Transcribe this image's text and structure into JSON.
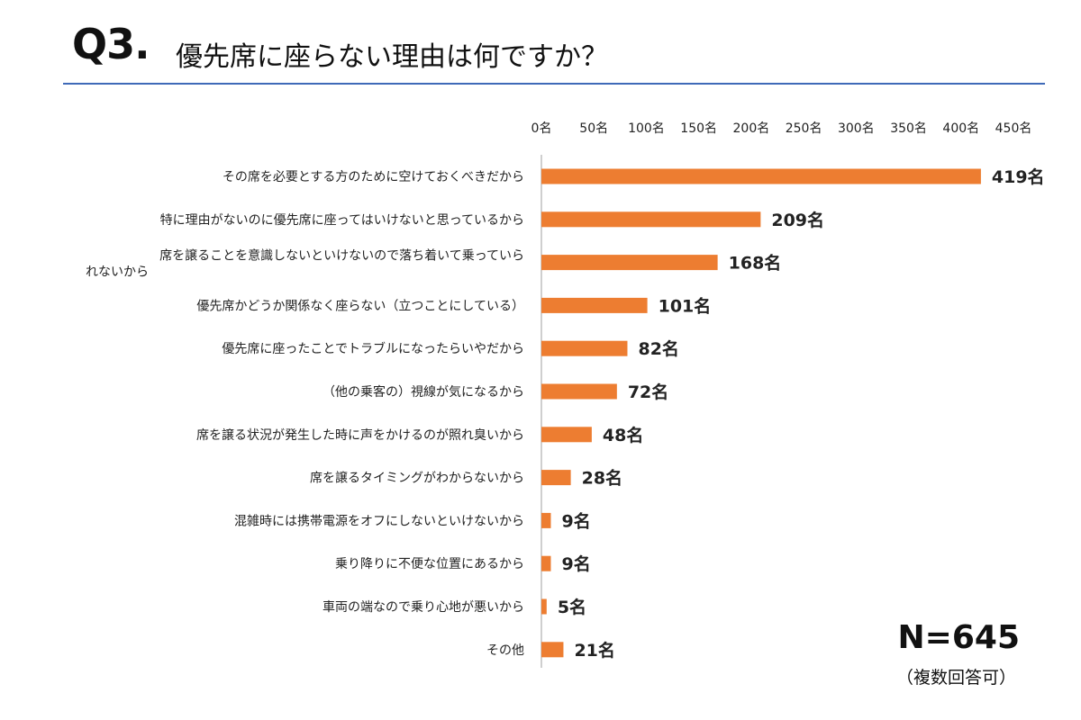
{
  "title": {
    "prefix": "Q3.",
    "text": "優先席に座らない理由は何ですか？"
  },
  "sample": {
    "n": "N=645",
    "note": "（複数回答可）"
  },
  "colors": {
    "bar": "#ed7d31",
    "rule": "#3f6ab8",
    "axis": "#bfbfbf"
  },
  "chart_data": {
    "type": "bar",
    "orientation": "horizontal",
    "unit": "名",
    "xlim": [
      0,
      450
    ],
    "ticks": [
      "0名",
      "50名",
      "100名",
      "150名",
      "200名",
      "250名",
      "300名",
      "350名",
      "400名",
      "450名"
    ],
    "tick_values": [
      0,
      50,
      100,
      150,
      200,
      250,
      300,
      350,
      400,
      450
    ],
    "axis_position": "top",
    "grid": false,
    "categories": [
      [
        "その席を必要とする方のために空けておくべきだから"
      ],
      [
        "特に理由がないのに優先席に座ってはいけないと思っているから"
      ],
      [
        "席を譲ることを意識しないといけないので落ち着いて乗っていら",
        "れないから"
      ],
      [
        "優先席かどうか関係なく座らない（立つことにしている）"
      ],
      [
        "優先席に座ったことでトラブルになったらいやだから"
      ],
      [
        "（他の乗客の）視線が気になるから"
      ],
      [
        "席を譲る状況が発生した時に声をかけるのが照れ臭いから"
      ],
      [
        "席を譲るタイミングがわからないから"
      ],
      [
        "混雑時には携帯電源をオフにしないといけないから"
      ],
      [
        "乗り降りに不便な位置にあるから"
      ],
      [
        "車両の端なので乗り心地が悪いから"
      ],
      [
        "その他"
      ]
    ],
    "values": [
      419,
      209,
      168,
      101,
      82,
      72,
      48,
      28,
      9,
      9,
      5,
      21
    ],
    "value_labels": [
      "419名",
      "209名",
      "168名",
      "101名",
      "82名",
      "72名",
      "48名",
      "28名",
      "9名",
      "9名",
      "5名",
      "21名"
    ]
  }
}
